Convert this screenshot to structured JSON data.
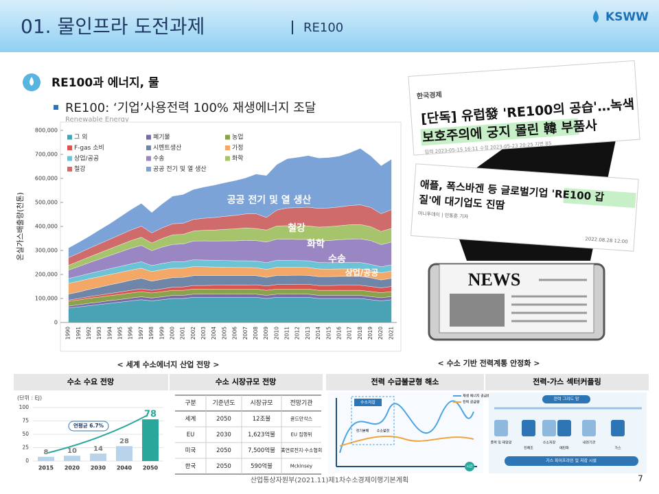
{
  "header": {
    "title": "01. 물인프라 도전과제",
    "section": "RE100",
    "logo": "KSWW"
  },
  "bullets": {
    "main": "RE100과 에너지, 물",
    "sub": "RE100: ‘기업’사용전력 100% 재생에너지 조달",
    "note": "Renewable Energy"
  },
  "news": [
    {
      "source": "한국경제",
      "headline_1": "[단독] 유럽發 'RE100의 공습'…녹색",
      "headline_2": "보호주의에 궁지 몰린 韓 부품사",
      "meta": "입력 2023-05-15 16:11   수정 2023-05-23 20:25   지면 B5"
    },
    {
      "headline_1": "애플, 폭스바겐 등 글로벌기업 'RE100 갑",
      "headline_2": "질'에 대기업도 진땀",
      "meta": "머니투데이 | 민동훈 기자",
      "date": "2022.08.28 12:00"
    }
  ],
  "news_icon": "NEWS",
  "captions": {
    "left": "< 세계 수소에너지 산업 전망 >",
    "right": "< 수소 기반 전력계통 안정화 >"
  },
  "panels": {
    "demand": "수소 수요 전망",
    "market": "수소 시장규모 전망",
    "balance": "전력 수급불균형 해소",
    "coupling": "전력-가스 섹터커플링"
  },
  "table": {
    "header": [
      "구분",
      "기준년도",
      "시장규모",
      "전망기관"
    ],
    "rows": [
      [
        "세계",
        "2050",
        "12조불",
        "골드만삭스"
      ],
      [
        "EU",
        "2030",
        "1,623억불",
        "EU 집행위"
      ],
      [
        "미국",
        "2050",
        "7,500억불",
        "美연료전지·수소협회"
      ],
      [
        "한국",
        "2050",
        "590억불",
        "Mckinsey"
      ]
    ]
  },
  "diagram": {
    "legend": [
      "재생 에너지 공급량",
      "전력 공급량"
    ],
    "storage": "수소저장",
    "electrolysis": "전기분해",
    "generation": "수소발전",
    "time": "시간",
    "grid": "전력 그리드 망",
    "pipeline": "가스 파이프라인 및 저장 시설",
    "nodes": [
      "풍력 및 태양광",
      "전해조",
      "수소저장",
      "메탄화",
      "내연기관",
      "가스"
    ]
  },
  "footer": {
    "source": "산업통상자원부(2021.11)제1차수소경제이행기본계획",
    "page": "7"
  },
  "chart_data": [
    {
      "type": "stacked_area",
      "y_label": "온실가스배출량(천톤)",
      "categories": [
        "1990",
        "1991",
        "1992",
        "1993",
        "1994",
        "1995",
        "1996",
        "1997",
        "1998",
        "1999",
        "2000",
        "2001",
        "2002",
        "2003",
        "2004",
        "2005",
        "2006",
        "2007",
        "2008",
        "2009",
        "2010",
        "2011",
        "2012",
        "2013",
        "2014",
        "2015",
        "2016",
        "2017",
        "2018",
        "2019",
        "2020",
        "2021"
      ],
      "ylim": [
        0,
        800000
      ],
      "yticks": [
        0,
        {
          "value": 100000,
          "label": "100,000"
        },
        {
          "value": 200000,
          "label": "200,000"
        },
        {
          "value": 300000,
          "label": "300,000"
        },
        {
          "value": 400000,
          "label": "400,000"
        },
        {
          "value": 500000,
          "label": "500,000"
        },
        {
          "value": 600000,
          "label": "600,000"
        },
        {
          "value": 700000,
          "label": "700,000"
        },
        {
          "value": 800000,
          "label": "800,000"
        }
      ],
      "legend_order": [
        0,
        1,
        2,
        3,
        4,
        5,
        6,
        7,
        8,
        9,
        10
      ],
      "series": [
        {
          "name": "그 외",
          "color": "#4aa3b5",
          "values": [
            60000,
            65000,
            70000,
            75000,
            80000,
            85000,
            90000,
            95000,
            90000,
            95000,
            100000,
            100000,
            105000,
            105000,
            105000,
            105000,
            105000,
            105000,
            105000,
            100000,
            105000,
            105000,
            105000,
            105000,
            100000,
            100000,
            100000,
            100000,
            100000,
            95000,
            90000,
            95000
          ]
        },
        {
          "name": "폐기물",
          "color": "#7a6aa8",
          "values": [
            8000,
            9000,
            10000,
            10000,
            11000,
            11000,
            12000,
            12000,
            12000,
            12000,
            13000,
            13000,
            13000,
            13000,
            13000,
            13000,
            13000,
            13000,
            13000,
            13000,
            13000,
            13000,
            13000,
            13000,
            13000,
            13000,
            13000,
            13000,
            13000,
            13000,
            13000,
            13000
          ]
        },
        {
          "name": "농업",
          "color": "#8aa34a",
          "values": [
            20000,
            20000,
            21000,
            21000,
            21000,
            21000,
            21000,
            21000,
            21000,
            21000,
            21000,
            21000,
            21000,
            21000,
            21000,
            21000,
            21000,
            21000,
            21000,
            21000,
            21000,
            21000,
            21000,
            21000,
            21000,
            21000,
            21000,
            21000,
            21000,
            21000,
            21000,
            21000
          ]
        },
        {
          "name": "F-gas 소비",
          "color": "#d9534f",
          "values": [
            5000,
            6000,
            7000,
            8000,
            9000,
            10000,
            11000,
            12000,
            11000,
            12000,
            13000,
            14000,
            15000,
            15000,
            16000,
            16000,
            17000,
            17000,
            18000,
            18000,
            19000,
            19000,
            20000,
            20000,
            20000,
            20000,
            21000,
            21000,
            21000,
            21000,
            20000,
            21000
          ]
        },
        {
          "name": "시멘트생산",
          "color": "#6f86a8",
          "values": [
            25000,
            27000,
            30000,
            33000,
            36000,
            39000,
            42000,
            44000,
            38000,
            40000,
            40000,
            40000,
            41000,
            41000,
            40000,
            40000,
            39000,
            39000,
            38000,
            36000,
            38000,
            38000,
            38000,
            37000,
            37000,
            37000,
            37000,
            37000,
            37000,
            36000,
            33000,
            34000
          ]
        },
        {
          "name": "가정",
          "color": "#f3a867",
          "values": [
            45000,
            45000,
            44000,
            44000,
            43000,
            43000,
            42000,
            42000,
            40000,
            40000,
            39000,
            38000,
            38000,
            37000,
            36000,
            35000,
            34000,
            34000,
            33000,
            33000,
            34000,
            34000,
            33000,
            33000,
            32000,
            31000,
            31000,
            31000,
            31000,
            30000,
            30000,
            30000
          ]
        },
        {
          "name": "상업/공공",
          "color": "#6cc3d6",
          "values": [
            20000,
            21000,
            22000,
            23000,
            24000,
            25000,
            26000,
            27000,
            25000,
            26000,
            27000,
            27000,
            28000,
            28000,
            28000,
            28000,
            28000,
            28000,
            28000,
            28000,
            29000,
            29000,
            28000,
            28000,
            27000,
            27000,
            27000,
            27000,
            27000,
            26000,
            25000,
            26000
          ]
        },
        {
          "name": "수송",
          "color": "#9b86c4",
          "values": [
            35000,
            40000,
            45000,
            50000,
            55000,
            60000,
            65000,
            68000,
            62000,
            68000,
            72000,
            74000,
            78000,
            80000,
            80000,
            82000,
            83000,
            85000,
            85000,
            86000,
            88000,
            88000,
            88000,
            89000,
            90000,
            92000,
            95000,
            97000,
            98000,
            99000,
            92000,
            95000
          ]
        },
        {
          "name": "화학",
          "color": "#a6c46b",
          "values": [
            20000,
            22000,
            24000,
            26000,
            28000,
            30000,
            32000,
            34000,
            32000,
            36000,
            40000,
            40000,
            42000,
            44000,
            46000,
            48000,
            50000,
            52000,
            50000,
            50000,
            55000,
            56000,
            56000,
            56000,
            57000,
            58000,
            58000,
            60000,
            60000,
            58000,
            55000,
            57000
          ]
        },
        {
          "name": "철강",
          "color": "#d06b6b",
          "values": [
            32000,
            34000,
            36000,
            38000,
            40000,
            42000,
            44000,
            46000,
            42000,
            44000,
            46000,
            46000,
            48000,
            50000,
            52000,
            54000,
            56000,
            58000,
            62000,
            52000,
            66000,
            74000,
            76000,
            78000,
            78000,
            78000,
            78000,
            80000,
            82000,
            80000,
            74000,
            78000
          ]
        },
        {
          "name": "공공 전기 및 열 생산",
          "color": "#7ba3d8",
          "values": [
            40000,
            45000,
            50000,
            58000,
            65000,
            75000,
            85000,
            95000,
            85000,
            100000,
            115000,
            120000,
            125000,
            130000,
            135000,
            140000,
            145000,
            150000,
            165000,
            175000,
            190000,
            205000,
            210000,
            215000,
            210000,
            210000,
            212000,
            220000,
            235000,
            215000,
            200000,
            210000
          ]
        }
      ],
      "annotations": [
        "공공 전기 및 열 생산",
        "철강",
        "화학",
        "수송",
        "상업/공공"
      ]
    },
    {
      "type": "bar",
      "unit": "(단위 : EJ)",
      "categories": [
        "2015",
        "2020",
        "2030",
        "2040",
        "2050"
      ],
      "values": [
        8,
        10,
        14,
        28,
        78
      ],
      "colors": [
        "#b9d3ea",
        "#b9d3ea",
        "#b9d3ea",
        "#b9d3ea",
        "#2aa79b"
      ],
      "ylim": [
        0,
        100
      ],
      "yticks": [
        0,
        25,
        50,
        75,
        100
      ],
      "annotation": "연평균 6.7%"
    }
  ]
}
